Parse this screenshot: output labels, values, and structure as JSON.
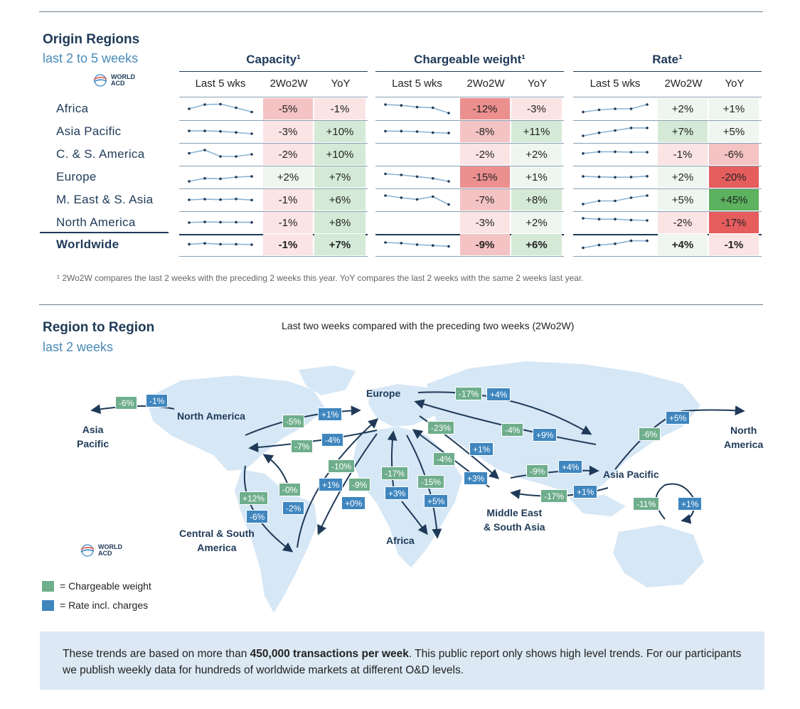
{
  "origin": {
    "title": "Origin Regions",
    "subtitle": "last 2 to 5 weeks",
    "logo": [
      "WORLD",
      "ACD"
    ],
    "groups": [
      "Capacity¹",
      "Chargeable weight¹",
      "Rate¹"
    ],
    "col_heads": [
      "Last 5 wks",
      "2Wo2W",
      "YoY"
    ],
    "footnote": "¹ 2Wo2W compares the last 2 weeks with the preceding 2 weeks this year. YoY compares the last 2 weeks with the same 2 weeks last year."
  },
  "chart_data": {
    "type": "table",
    "regions": [
      "Africa",
      "Asia Pacific",
      "C. & S. America",
      "Europe",
      "M. East & S. Asia",
      "North America",
      "Worldwide"
    ],
    "metrics": [
      "Capacity",
      "Chargeable weight",
      "Rate"
    ],
    "rows": [
      {
        "capacity": {
          "wow": "-5%",
          "yoy": "-1%",
          "spark": [
            3,
            5,
            5.2,
            3.5,
            1.5
          ]
        },
        "weight": {
          "wow": "-12%",
          "yoy": "-3%",
          "spark": [
            5,
            4.6,
            3.8,
            3.5,
            1
          ]
        },
        "rate": {
          "wow": "+2%",
          "yoy": "+1%",
          "spark": [
            1.5,
            2.5,
            3,
            3,
            5
          ]
        }
      },
      {
        "capacity": {
          "wow": "-3%",
          "yoy": "+10%",
          "spark": [
            3.3,
            3.3,
            3.1,
            2.6,
            2
          ]
        },
        "weight": {
          "wow": "-8%",
          "yoy": "+11%",
          "spark": [
            3.2,
            3.2,
            3,
            2.5,
            2.3
          ]
        },
        "rate": {
          "wow": "+7%",
          "yoy": "+5%",
          "spark": [
            1,
            2.4,
            3.5,
            4.7,
            4.7
          ]
        }
      },
      {
        "capacity": {
          "wow": "-2%",
          "yoy": "+10%",
          "spark": [
            3.5,
            5,
            2,
            2,
            3
          ]
        },
        "weight": {
          "wow": "-2%",
          "yoy": "+2%",
          "spark": []
        },
        "rate": {
          "wow": "-1%",
          "yoy": "-6%",
          "spark": [
            3.4,
            4.2,
            4.2,
            4,
            4
          ]
        }
      },
      {
        "capacity": {
          "wow": "+2%",
          "yoy": "+7%",
          "spark": [
            1,
            2.4,
            2.2,
            3,
            3.3
          ]
        },
        "weight": {
          "wow": "-15%",
          "yoy": "+1%",
          "spark": [
            4.5,
            4,
            3.2,
            2.4,
            1
          ]
        },
        "rate": {
          "wow": "+2%",
          "yoy": "-20%",
          "spark": [
            3.3,
            3.1,
            2.9,
            3,
            3.4
          ]
        }
      },
      {
        "capacity": {
          "wow": "-1%",
          "yoy": "+6%",
          "spark": [
            3,
            3.3,
            3.1,
            3.4,
            2.9
          ]
        },
        "weight": {
          "wow": "-7%",
          "yoy": "+8%",
          "spark": [
            5,
            4,
            3.2,
            4.5,
            0.8
          ]
        },
        "rate": {
          "wow": "+5%",
          "yoy": "+45%",
          "spark": [
            1,
            2.5,
            2.5,
            4,
            5
          ]
        }
      },
      {
        "capacity": {
          "wow": "-1%",
          "yoy": "+8%",
          "spark": [
            3,
            3.3,
            3.2,
            3.2,
            3.1
          ]
        },
        "weight": {
          "wow": "-3%",
          "yoy": "+2%",
          "spark": []
        },
        "rate": {
          "wow": "-2%",
          "yoy": "-17%",
          "spark": [
            5,
            4.6,
            4.6,
            4.2,
            4
          ]
        }
      },
      {
        "capacity": {
          "wow": "-1%",
          "yoy": "+7%",
          "spark": [
            3.2,
            3.6,
            3.2,
            3.2,
            3
          ]
        },
        "weight": {
          "wow": "-9%",
          "yoy": "+6%",
          "spark": [
            4,
            3.7,
            3,
            2.6,
            2.2
          ]
        },
        "rate": {
          "wow": "+4%",
          "yoy": "-1%",
          "spark": [
            1.5,
            2.8,
            3.4,
            4.8,
            4.8
          ]
        }
      }
    ],
    "colors": {
      "neg_light": "#fbe4e4",
      "neg_mid": "#f4c3c3",
      "neg_strong": "#ec8f8f",
      "neg_deep": "#e55d5d",
      "pos_light": "#eef6ef",
      "pos_mid": "#d4ead6",
      "pos_strong": "#5cb25f",
      "weight": "#6fae8c",
      "rate": "#3f86bf"
    }
  },
  "region_map": {
    "title": "Region to Region",
    "subtitle": "last 2 weeks",
    "caption": "Last two weeks compared with the preceding two weeks (2Wo2W)",
    "labels": {
      "europe": "Europe",
      "north_america": "North America",
      "asia_pacific_left": [
        "Asia",
        "Pacific"
      ],
      "north_america_right": [
        "North",
        "America"
      ],
      "central_south_america": [
        "Central & South",
        "America"
      ],
      "africa": "Africa",
      "middle_east": [
        "Middle East",
        "& South Asia"
      ],
      "asia_pacific": "Asia Pacific"
    },
    "flows": [
      {
        "w": "-6%",
        "r": "-1%"
      },
      {
        "w": "-17%",
        "r": "+4%"
      },
      {
        "w": "-5%",
        "r": "+1%"
      },
      {
        "w": "-7%",
        "r": "-4%"
      },
      {
        "w": "-23%",
        "r": "+1%"
      },
      {
        "w": "-4%",
        "r": "+9%"
      },
      {
        "w": "-6%",
        "r": "+5%"
      },
      {
        "w": "-10%",
        "r": "+1%"
      },
      {
        "w": "-9%",
        "r": "+0%"
      },
      {
        "w": "-17%",
        "r": "+3%"
      },
      {
        "w": "-15%",
        "r": "+5%"
      },
      {
        "w": "-4%",
        "r": "+3%"
      },
      {
        "w": "-9%",
        "r": "+4%"
      },
      {
        "w": "-17%",
        "r": "+1%"
      },
      {
        "w": "+12%",
        "r": "-6%"
      },
      {
        "w": "-0%",
        "r": "-2%"
      },
      {
        "w": "-11%",
        "r": "+1%"
      }
    ],
    "legend": [
      "= Chargeable weight",
      "= Rate incl. charges"
    ],
    "logo": [
      "WORLD",
      "ACD"
    ]
  },
  "info": {
    "pre": "These trends are based on more than ",
    "bold": "450,000 transactions per week",
    "post": ". This public report only shows high level trends. For our participants we publish weekly data for hundreds of worldwide markets at different O&D levels."
  }
}
